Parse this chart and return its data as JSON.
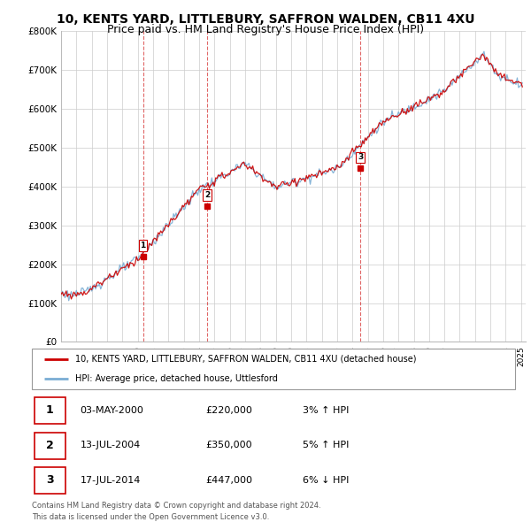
{
  "title": "10, KENTS YARD, LITTLEBURY, SAFFRON WALDEN, CB11 4XU",
  "subtitle": "Price paid vs. HM Land Registry's House Price Index (HPI)",
  "ylim": [
    0,
    800000
  ],
  "yticks": [
    0,
    100000,
    200000,
    300000,
    400000,
    500000,
    600000,
    700000,
    800000
  ],
  "ytick_labels": [
    "£0",
    "£100K",
    "£200K",
    "£300K",
    "£400K",
    "£500K",
    "£600K",
    "£700K",
    "£800K"
  ],
  "sales": [
    {
      "date": 2000.34,
      "price": 220000,
      "label": "1",
      "pct": "3%",
      "dir": "↑",
      "date_str": "03-MAY-2000",
      "price_str": "£220,000"
    },
    {
      "date": 2004.53,
      "price": 350000,
      "label": "2",
      "pct": "5%",
      "dir": "↑",
      "date_str": "13-JUL-2004",
      "price_str": "£350,000"
    },
    {
      "date": 2014.53,
      "price": 447000,
      "label": "3",
      "pct": "6%",
      "dir": "↓",
      "date_str": "17-JUL-2014",
      "price_str": "£447,000"
    }
  ],
  "legend_line1": "10, KENTS YARD, LITTLEBURY, SAFFRON WALDEN, CB11 4XU (detached house)",
  "legend_line2": "HPI: Average price, detached house, Uttlesford",
  "footer1": "Contains HM Land Registry data © Crown copyright and database right 2024.",
  "footer2": "This data is licensed under the Open Government Licence v3.0.",
  "red_color": "#cc0000",
  "blue_color": "#7aadd4",
  "background_color": "#ffffff",
  "grid_color": "#cccccc",
  "title_fontsize": 10,
  "subtitle_fontsize": 9
}
